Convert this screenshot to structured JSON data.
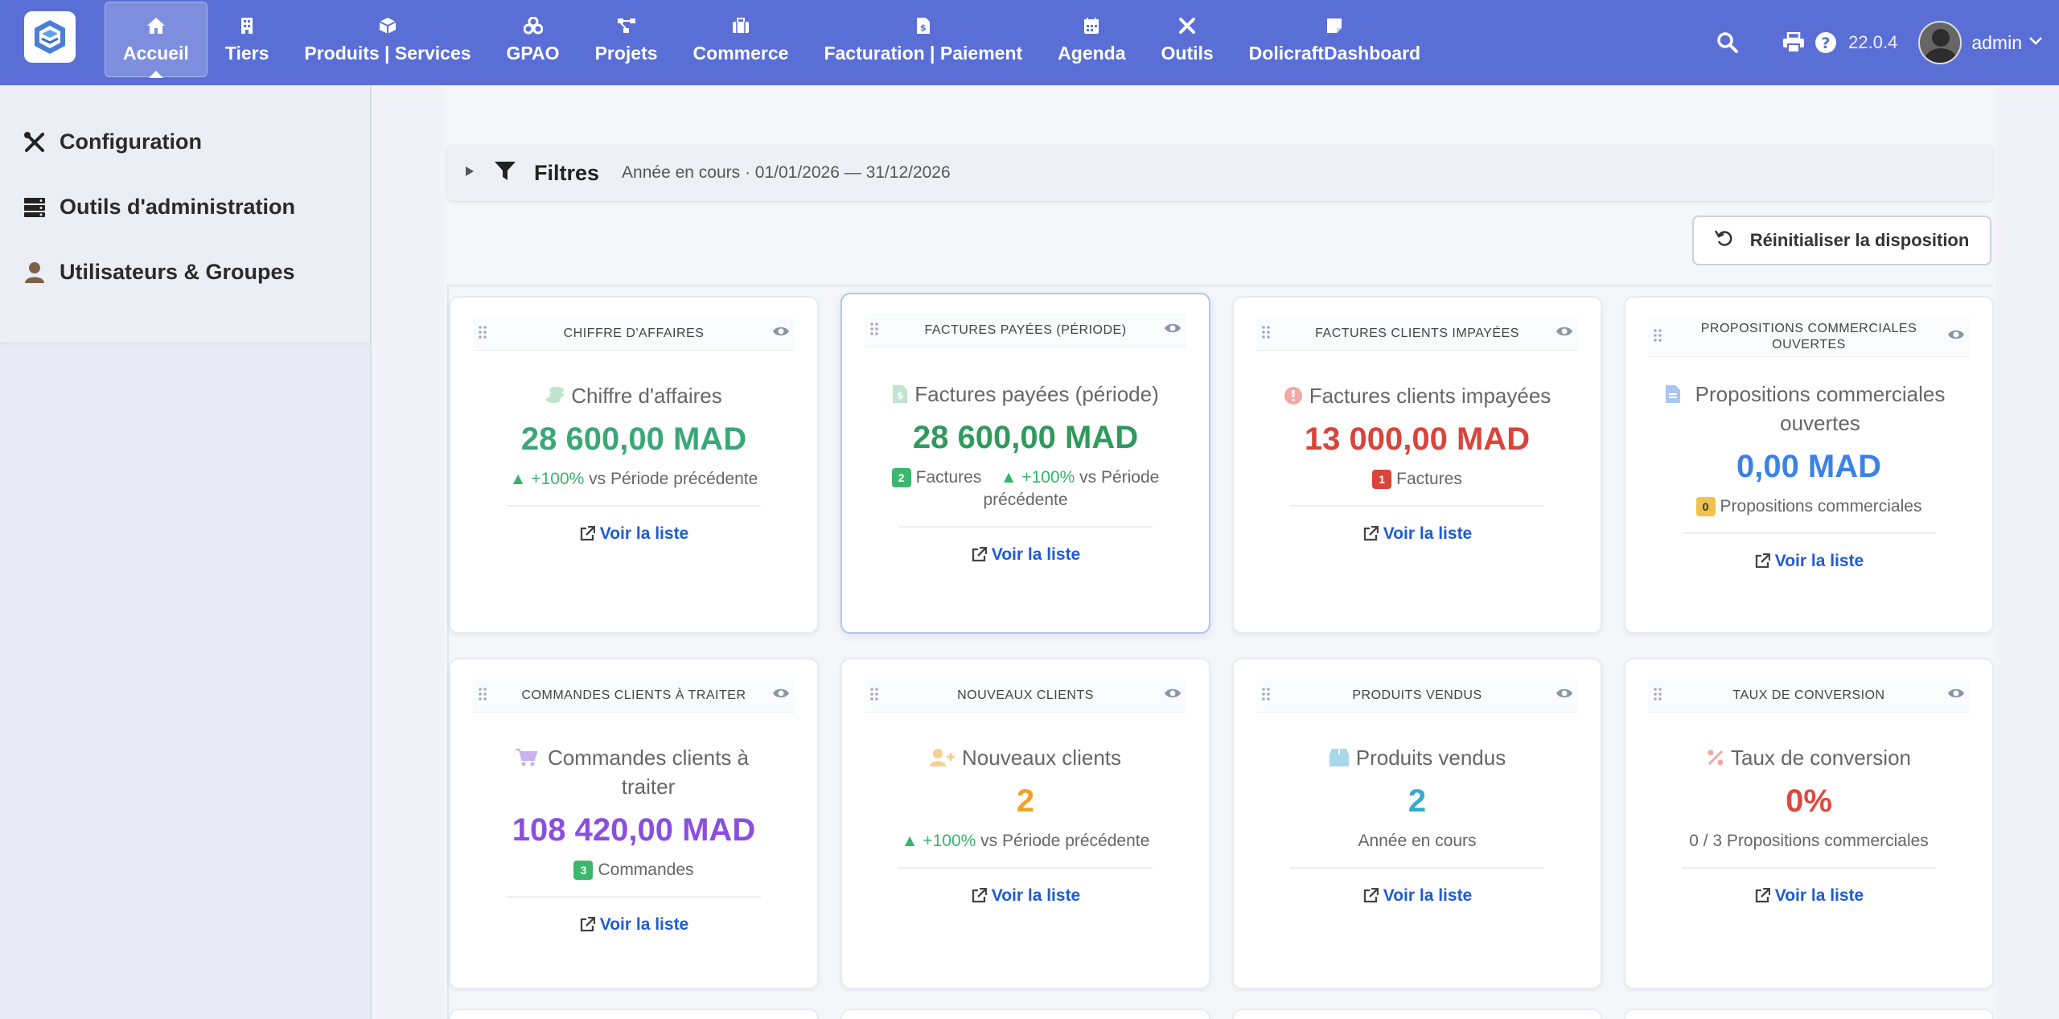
{
  "topbar": {
    "menu": [
      {
        "label": "Accueil",
        "icon": "home-icon",
        "active": true
      },
      {
        "label": "Tiers",
        "icon": "building-icon"
      },
      {
        "label": "Produits | Services",
        "icon": "cube-icon"
      },
      {
        "label": "GPAO",
        "icon": "cubes-icon"
      },
      {
        "label": "Projets",
        "icon": "project-diagram-icon"
      },
      {
        "label": "Commerce",
        "icon": "suitcase-icon"
      },
      {
        "label": "Facturation | Paiement",
        "icon": "invoice-icon"
      },
      {
        "label": "Agenda",
        "icon": "calendar-icon"
      },
      {
        "label": "Outils",
        "icon": "tools-icon"
      },
      {
        "label": "DolicraftDashboard",
        "icon": "sticky-note-icon"
      }
    ],
    "version": "22.0.4",
    "user": "admin",
    "accent": "#5a6fd6"
  },
  "sidebar": {
    "items": [
      {
        "label": "Configuration",
        "icon": "tools-icon"
      },
      {
        "label": "Outils d'administration",
        "icon": "server-icon"
      },
      {
        "label": "Utilisateurs & Groupes",
        "icon": "user-icon"
      }
    ]
  },
  "main": {
    "filters": {
      "title": "Filtres",
      "description": "Année en cours · 01/01/2026 — 31/12/2026"
    },
    "reset_label": "Réinitialiser la disposition",
    "cards": [
      {
        "header": "CHIFFRE D'AFFAIRES",
        "name": "Chiffre d'affaires",
        "value": "28 600,00 MAD",
        "value_color": "#3aa876",
        "trend": "▲ +100%",
        "trend_suffix": " vs Période précédente",
        "link": "Voir la liste"
      },
      {
        "header": "FACTURES PAYÉES (PÉRIODE)",
        "name": "Factures payées (période)",
        "value": "28 600,00 MAD",
        "value_color": "#2f9a5c",
        "badge": "2",
        "badge_label": "Factures",
        "trend": "▲ +100%",
        "trend_suffix": " vs Période précédente",
        "link": "Voir la liste"
      },
      {
        "header": "FACTURES CLIENTS IMPAYÉES",
        "name": "Factures clients impayées",
        "value": "13 000,00 MAD",
        "value_color": "#d9443b",
        "badge": "1",
        "badge_label": "Factures",
        "link": "Voir la liste"
      },
      {
        "header": "PROPOSITIONS COMMERCIALES OUVERTES",
        "name": "Propositions commerciales ouvertes",
        "value": "0,00 MAD",
        "value_color": "#3b82e8",
        "badge": "0",
        "badge_label": "Propositions commerciales",
        "link": "Voir la liste"
      },
      {
        "header": "COMMANDES CLIENTS À TRAITER",
        "name": "Commandes clients à traiter",
        "value": "108 420,00 MAD",
        "value_color": "#8a4fe0",
        "badge": "3",
        "badge_label": "Commandes",
        "link": "Voir la liste"
      },
      {
        "header": "NOUVEAUX CLIENTS",
        "name": "Nouveaux clients",
        "value": "2",
        "value_color": "#f0a12a",
        "trend": "▲ +100%",
        "trend_suffix": " vs Période précédente",
        "link": "Voir la liste"
      },
      {
        "header": "PRODUITS VENDUS",
        "name": "Produits vendus",
        "value": "2",
        "value_color": "#35a9d1",
        "sub": "Année en cours",
        "link": "Voir la liste"
      },
      {
        "header": "TAUX DE CONVERSION",
        "name": "Taux de conversion",
        "value": "0%",
        "value_color": "#e0483e",
        "sub": "0 / 3 Propositions commerciales",
        "link": "Voir la liste"
      }
    ]
  }
}
